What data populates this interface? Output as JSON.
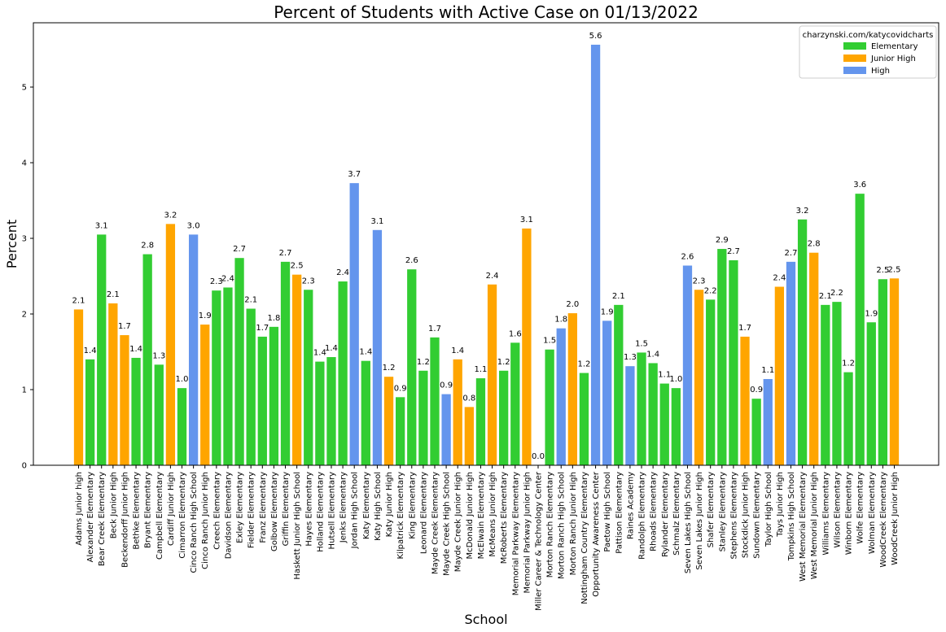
{
  "colors": {
    "elementary": "#32cd32",
    "junior_high": "#ffa500",
    "high": "#6495ed"
  },
  "chart_data": {
    "type": "bar",
    "title": "Percent of Students with Active Case on 01/13/2022",
    "xlabel": "School",
    "ylabel": "Percent",
    "ylim": [
      0,
      5.85
    ],
    "yticks": [
      0,
      1,
      2,
      3,
      4,
      5
    ],
    "grid": false,
    "legend_position": "top-right",
    "legend": {
      "title": "charzynski.com/katycovidcharts",
      "entries": [
        {
          "name": "Elementary",
          "color": "#32cd32"
        },
        {
          "name": "Junior High",
          "color": "#ffa500"
        },
        {
          "name": "High",
          "color": "#6495ed"
        }
      ]
    },
    "categories": [
      "Adams Junior high",
      "Alexander Elementary",
      "Bear Creek Elementary",
      "Beck Junior High",
      "Beckendorff Junior High",
      "Bethke Elementary",
      "Bryant Elementary",
      "Campbell Elementary",
      "Cardiff Junior High",
      "Cimarron Elementary",
      "Cinco Ranch High School",
      "Cinco Ranch Junior High",
      "Creech Elementary",
      "Davidson Elementary",
      "Exley Elementary",
      "Fielder Elementary",
      "Franz Elementary",
      "Golbow Elementary",
      "Griffin Elementary",
      "Haskett Junior High School",
      "Hayes Elementary",
      "Holland Elementary",
      "Hutsell Elementary",
      "Jenks Elementary",
      "Jordan High School",
      "Katy Elementary",
      "Katy High School",
      "Katy Junior High",
      "Kilpatrick Elementary",
      "King Elementary",
      "Leonard Elementary",
      "Mayde Creek Elementary",
      "Mayde Creek High School",
      "Mayde Creek Junior High",
      "McDonald Junior High",
      "McElwain Elementary",
      "McMeans Junior High",
      "McRoberts Elementary",
      "Memorial Parkway Elementary",
      "Memorial Parkway Junior High",
      "Miller Career & Technology Center",
      "Morton Ranch Elementary",
      "Morton Ranch High School",
      "Morton Ranch Junior High",
      "Nottingham Country Elementary",
      "Opportunity Awareness Center",
      "Paetow High School",
      "Pattison Elementary",
      "Raines Academy",
      "Randolph Elementary",
      "Rhoads Elementary",
      "Rylander Elementary",
      "Schmalz Elementary",
      "Seven Lakes High School",
      "Seven Lakes Junior High",
      "Shafer Elementary",
      "Stanley Elementary",
      "Stephens Elementary",
      "Stockdick Junior High",
      "Sundown Elementary",
      "Taylor High School",
      "Tays Junior High",
      "Tompkins High School",
      "West Memorial Elementary",
      "West Memorial Junior High",
      "Williams Elementary",
      "Wilson Elementary",
      "Winborn Elementary",
      "Wolfe Elementary",
      "Wolman Elementary",
      "WoodCreek Elementary",
      "WoodCreek Junior High"
    ],
    "values": [
      2.06,
      1.4,
      3.05,
      2.14,
      1.72,
      1.42,
      2.79,
      1.33,
      3.19,
      1.02,
      3.05,
      1.86,
      2.31,
      2.35,
      2.74,
      2.07,
      1.7,
      1.83,
      2.69,
      2.52,
      2.32,
      1.37,
      1.43,
      2.43,
      3.73,
      1.38,
      3.11,
      1.17,
      0.9,
      2.59,
      1.25,
      1.69,
      0.94,
      1.4,
      0.77,
      1.15,
      2.39,
      1.25,
      1.62,
      3.13,
      0.0,
      1.53,
      1.81,
      2.01,
      1.22,
      5.56,
      1.91,
      2.12,
      1.31,
      1.49,
      1.35,
      1.08,
      1.02,
      2.64,
      2.32,
      2.19,
      2.86,
      2.71,
      1.7,
      0.88,
      1.14,
      2.36,
      2.69,
      3.25,
      2.81,
      2.12,
      2.16,
      1.23,
      3.59,
      1.89,
      2.46,
      2.47
    ],
    "data_labels": [
      "2.1",
      "1.4",
      "3.1",
      "2.1",
      "1.7",
      "1.4",
      "2.8",
      "1.3",
      "3.2",
      "1.0",
      "3.0",
      "1.9",
      "2.3",
      "2.4",
      "2.7",
      "2.1",
      "1.7",
      "1.8",
      "2.7",
      "2.5",
      "2.3",
      "1.4",
      "1.4",
      "2.4",
      "3.7",
      "1.4",
      "3.1",
      "1.2",
      "0.9",
      "2.6",
      "1.2",
      "1.7",
      "0.9",
      "1.4",
      "0.8",
      "1.1",
      "2.4",
      "1.2",
      "1.6",
      "3.1",
      "0.0",
      "1.5",
      "1.8",
      "2.0",
      "1.2",
      "5.6",
      "1.9",
      "2.1",
      "1.3",
      "1.5",
      "1.4",
      "1.1",
      "1.0",
      "2.6",
      "2.3",
      "2.2",
      "2.9",
      "2.7",
      "1.7",
      "0.9",
      "1.1",
      "2.4",
      "2.7",
      "3.2",
      "2.8",
      "2.1",
      "2.2",
      "1.2",
      "3.6",
      "1.9",
      "2.5",
      "2.5"
    ],
    "school_types": [
      "Junior High",
      "Elementary",
      "Elementary",
      "Junior High",
      "Junior High",
      "Elementary",
      "Elementary",
      "Elementary",
      "Junior High",
      "Elementary",
      "High",
      "Junior High",
      "Elementary",
      "Elementary",
      "Elementary",
      "Elementary",
      "Elementary",
      "Elementary",
      "Elementary",
      "Junior High",
      "Elementary",
      "Elementary",
      "Elementary",
      "Elementary",
      "High",
      "Elementary",
      "High",
      "Junior High",
      "Elementary",
      "Elementary",
      "Elementary",
      "Elementary",
      "High",
      "Junior High",
      "Junior High",
      "Elementary",
      "Junior High",
      "Elementary",
      "Elementary",
      "Junior High",
      "High",
      "Elementary",
      "High",
      "Junior High",
      "Elementary",
      "High",
      "High",
      "Elementary",
      "High",
      "Elementary",
      "Elementary",
      "Elementary",
      "Elementary",
      "High",
      "Junior High",
      "Elementary",
      "Elementary",
      "Elementary",
      "Junior High",
      "Elementary",
      "High",
      "Junior High",
      "High",
      "Elementary",
      "Junior High",
      "Elementary",
      "Elementary",
      "Elementary",
      "Elementary",
      "Elementary",
      "Elementary",
      "Junior High"
    ]
  }
}
